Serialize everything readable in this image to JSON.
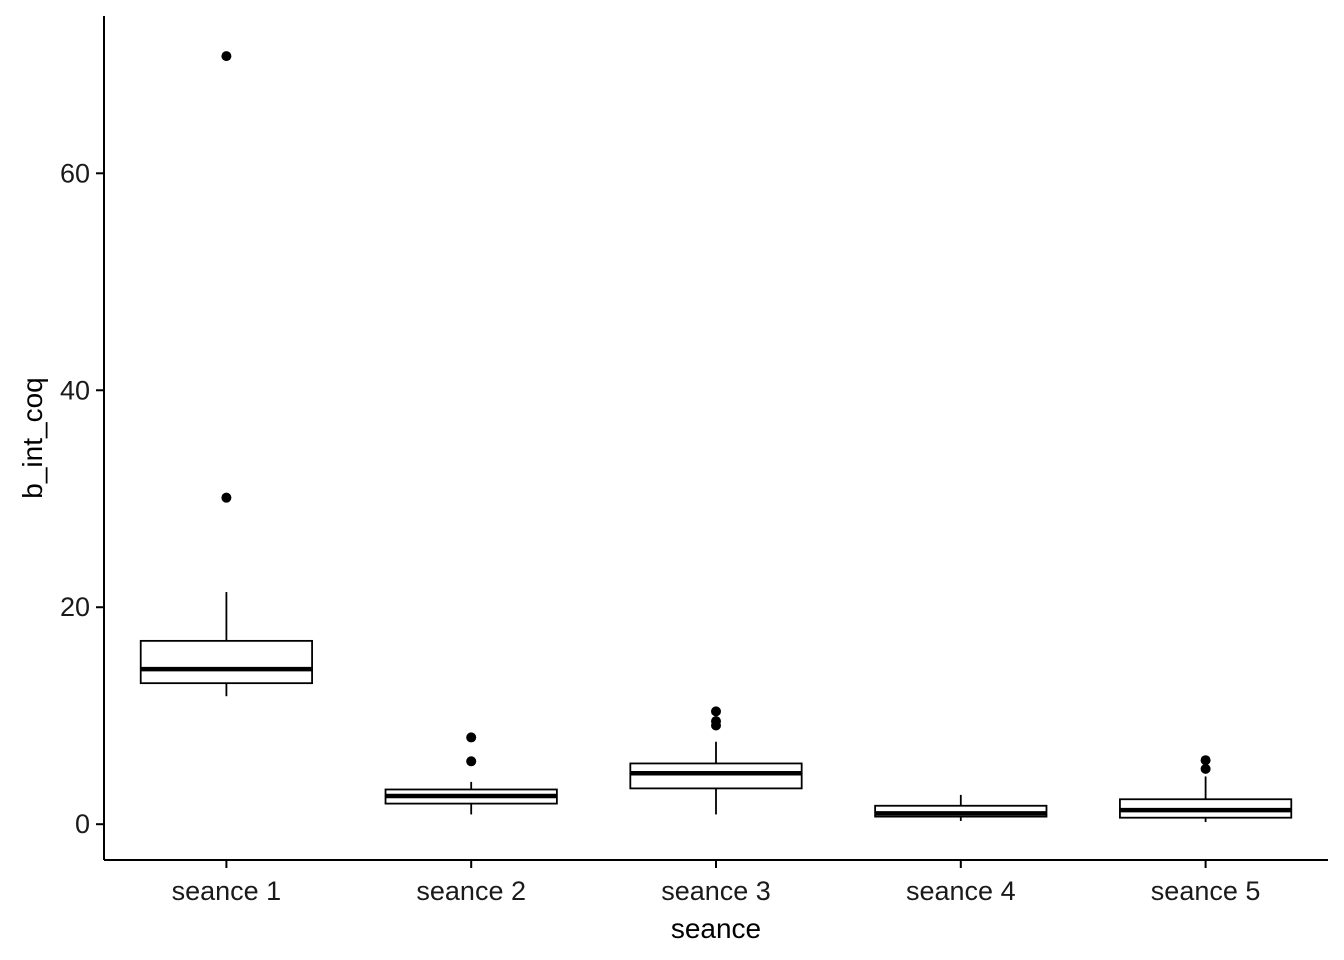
{
  "chart_data": {
    "type": "boxplot",
    "title": "",
    "xlabel": "seance",
    "ylabel": "b_int_coq",
    "ylim": [
      -3.3,
      74.5
    ],
    "yticks": [
      0,
      20,
      40,
      60
    ],
    "grid": false,
    "legend": "none",
    "categories": [
      "seance 1",
      "seance 2",
      "seance 3",
      "seance 4",
      "seance 5"
    ],
    "boxes": [
      {
        "category": "seance 1",
        "whisker_low": 11.8,
        "q1": 13.0,
        "median": 14.3,
        "q3": 16.9,
        "whisker_high": 21.4,
        "outliers": [
          30.1,
          70.8
        ]
      },
      {
        "category": "seance 2",
        "whisker_low": 0.9,
        "q1": 1.9,
        "median": 2.6,
        "q3": 3.2,
        "whisker_high": 3.9,
        "outliers": [
          5.8,
          8.0
        ]
      },
      {
        "category": "seance 3",
        "whisker_low": 0.9,
        "q1": 3.3,
        "median": 4.7,
        "q3": 5.6,
        "whisker_high": 7.6,
        "outliers": [
          9.1,
          9.5,
          10.4
        ]
      },
      {
        "category": "seance 4",
        "whisker_low": 0.3,
        "q1": 0.7,
        "median": 1.0,
        "q3": 1.7,
        "whisker_high": 2.7,
        "outliers": []
      },
      {
        "category": "seance 5",
        "whisker_low": 0.2,
        "q1": 0.6,
        "median": 1.3,
        "q3": 2.3,
        "whisker_high": 4.4,
        "outliers": [
          5.1,
          5.9
        ]
      }
    ]
  },
  "colors": {
    "box_fill": "#ffffff",
    "box_stroke": "#000000",
    "median": "#000000",
    "outlier": "#000000",
    "axis": "#000000",
    "tick_label": "#1a1a1a"
  }
}
